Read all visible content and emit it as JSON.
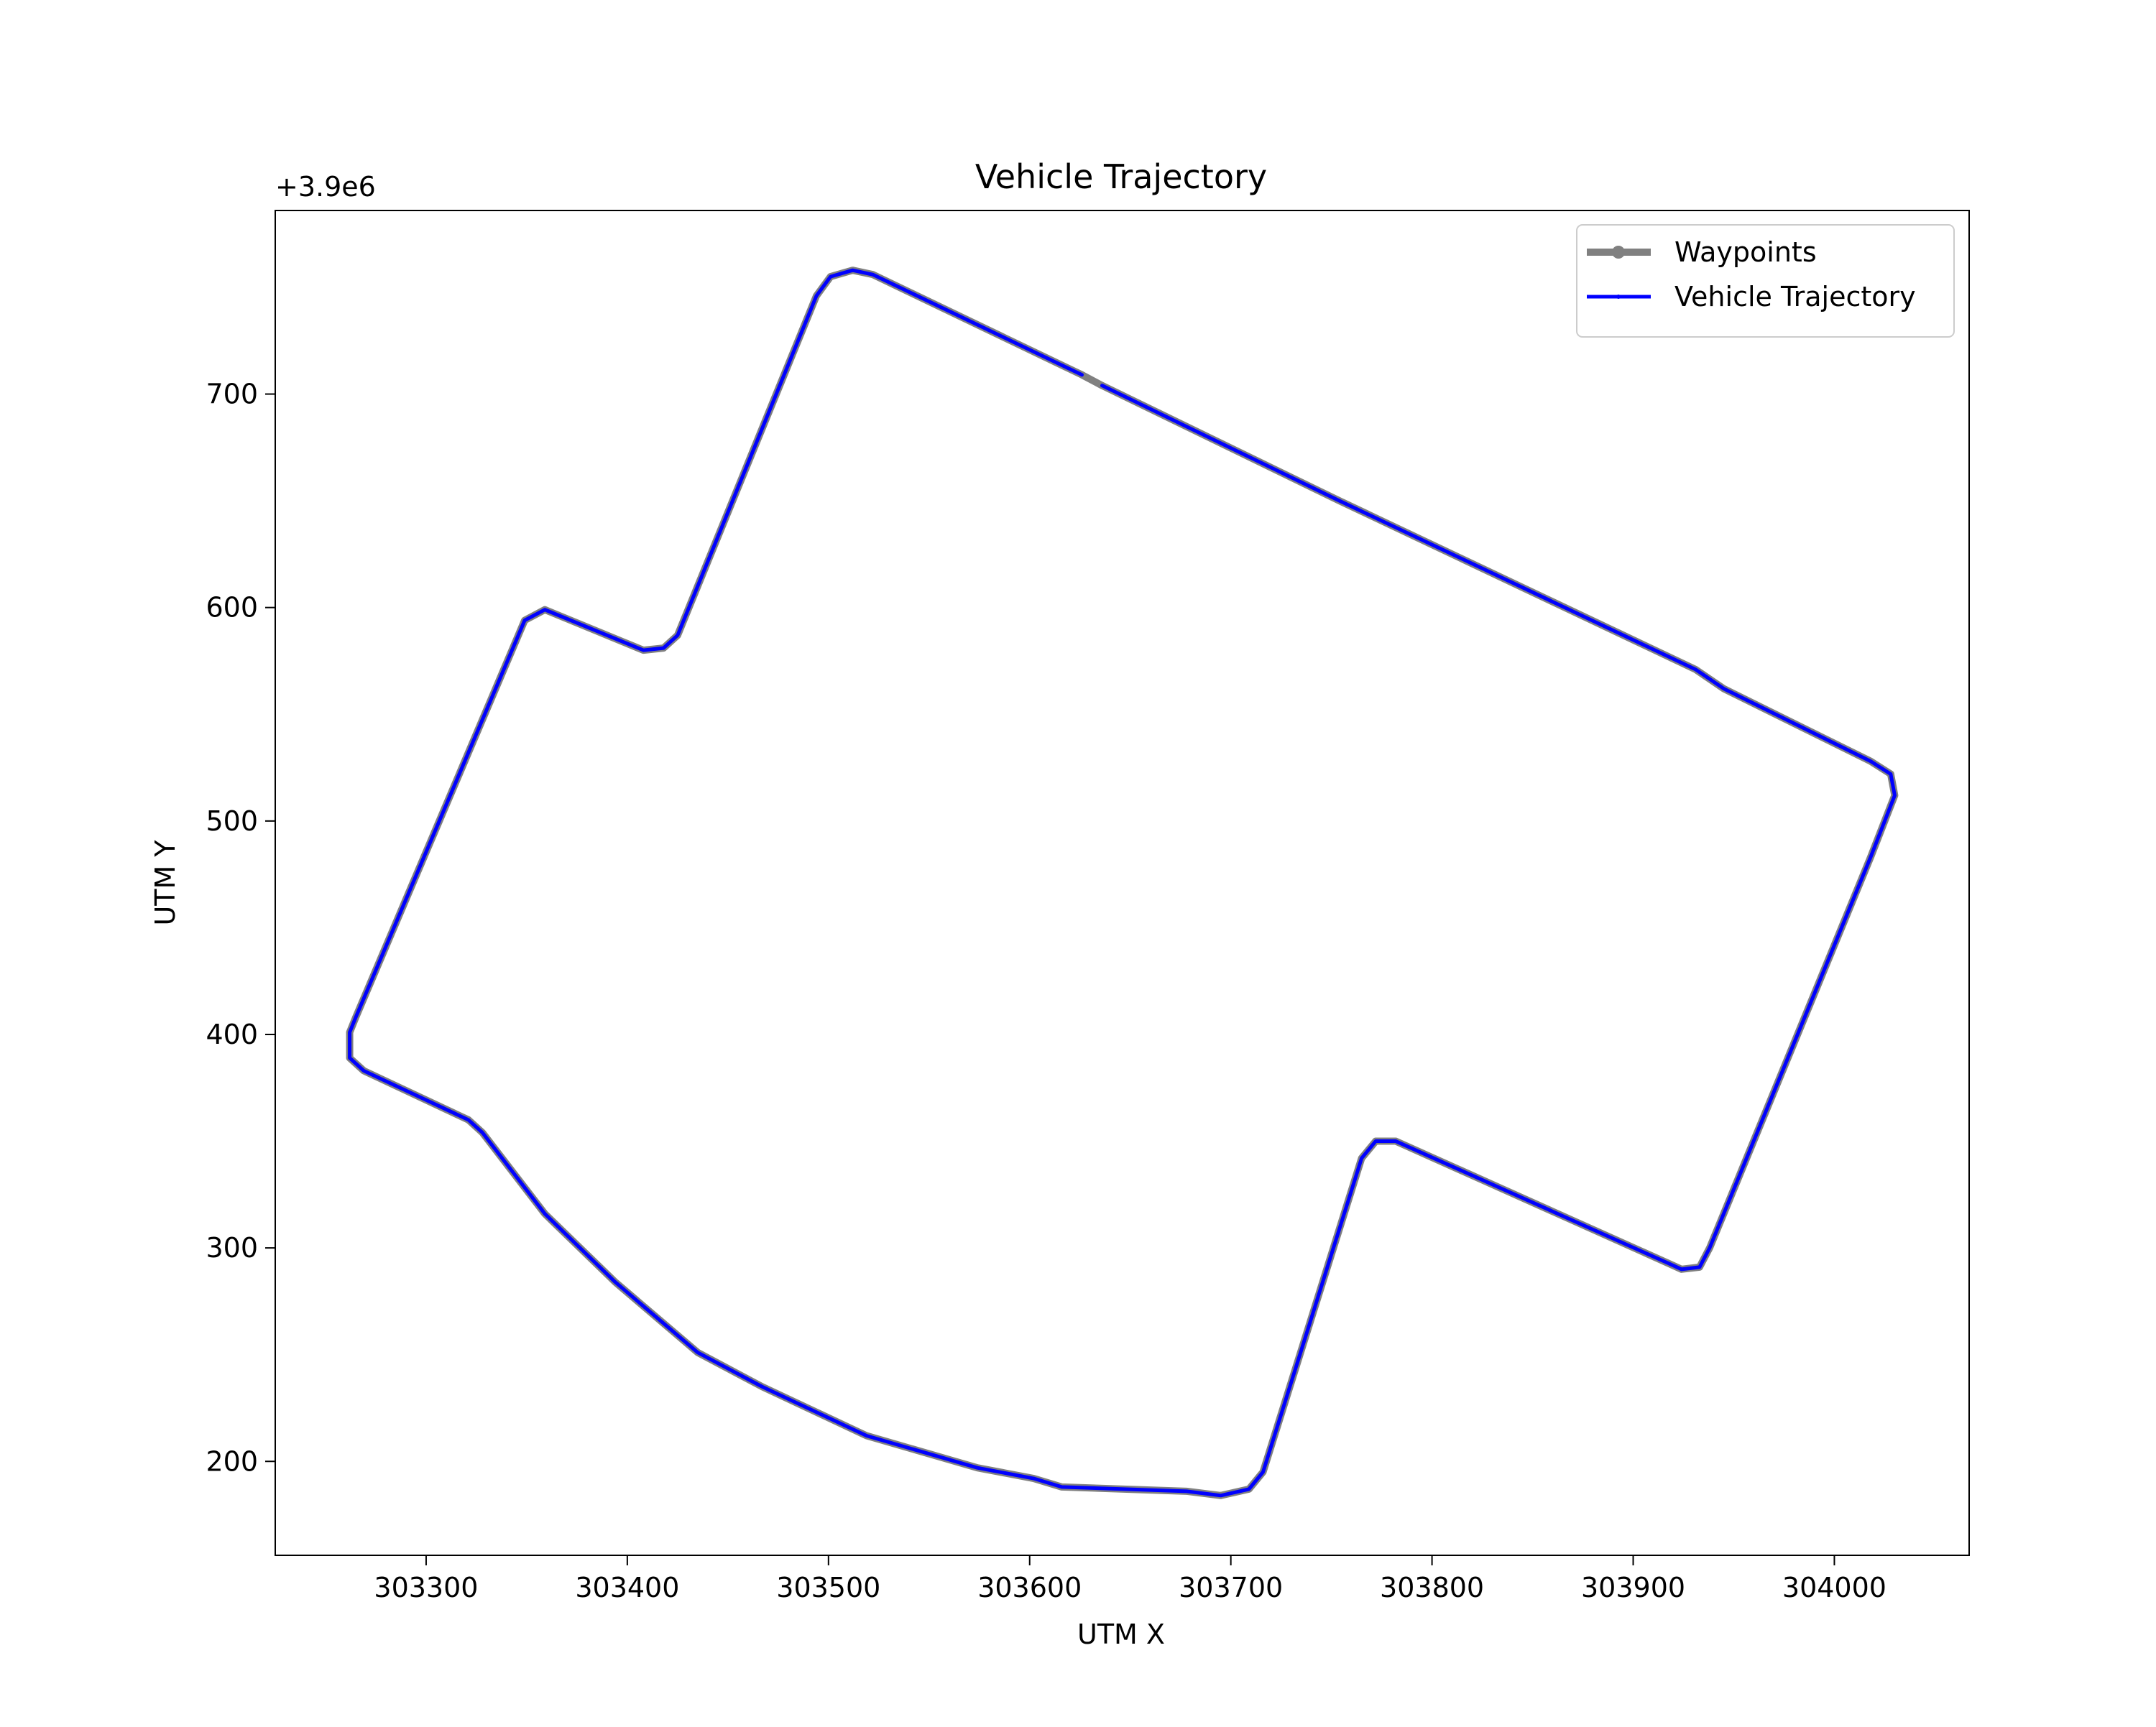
{
  "chart_data": {
    "type": "line",
    "title": "Vehicle Trajectory",
    "x_label": "UTM X",
    "y_label": "UTM Y",
    "y_offset_text": "+3.9e6",
    "xlim": [
      303225,
      304067
    ],
    "ylim": [
      156,
      786
    ],
    "xticks": [
      303300,
      303400,
      303500,
      303600,
      303700,
      303800,
      303900,
      304000
    ],
    "yticks": [
      200,
      300,
      400,
      500,
      600,
      700
    ],
    "grid": false,
    "legend": "upper right",
    "series": [
      {
        "name": "Waypoints",
        "color": "#808080",
        "marker": true,
        "x": [
          303636,
          303754,
          303931,
          303945,
          304018,
          304028,
          304030,
          304018,
          303938,
          303933,
          303924,
          303917,
          303782,
          303772,
          303765,
          303716,
          303709,
          303695,
          303678,
          303616,
          303602,
          303574,
          303519,
          303467,
          303435,
          303394,
          303359,
          303328,
          303321,
          303269,
          303262,
          303262,
          303265,
          303349,
          303359,
          303408,
          303418,
          303425,
          303494,
          303501,
          303512,
          303522,
          303626,
          303636
        ],
        "values": [
          704,
          650,
          571,
          562,
          528,
          522,
          512,
          483,
          300,
          291,
          290,
          293,
          350,
          350,
          342,
          195,
          187,
          184,
          186,
          188,
          192,
          197,
          212,
          235,
          251,
          284,
          316,
          354,
          360,
          383,
          389,
          401,
          408,
          594,
          599,
          580,
          581,
          587,
          746,
          755,
          758,
          756,
          709,
          704
        ]
      },
      {
        "name": "Vehicle Trajectory",
        "color": "#0000ff",
        "marker": false,
        "x": [
          303636,
          303754,
          303931,
          303945,
          304018,
          304028,
          304030,
          304018,
          303938,
          303933,
          303924,
          303917,
          303782,
          303772,
          303765,
          303716,
          303709,
          303695,
          303678,
          303616,
          303602,
          303574,
          303519,
          303467,
          303435,
          303394,
          303359,
          303328,
          303321,
          303269,
          303262,
          303262,
          303265,
          303349,
          303359,
          303408,
          303418,
          303425,
          303494,
          303501,
          303512,
          303522,
          303626
        ],
        "values": [
          704,
          650,
          571,
          562,
          528,
          522,
          512,
          483,
          300,
          291,
          290,
          293,
          350,
          350,
          342,
          195,
          187,
          184,
          186,
          188,
          192,
          197,
          212,
          235,
          251,
          284,
          316,
          354,
          360,
          383,
          389,
          401,
          408,
          594,
          599,
          580,
          581,
          587,
          746,
          755,
          758,
          756,
          709
        ]
      }
    ]
  }
}
